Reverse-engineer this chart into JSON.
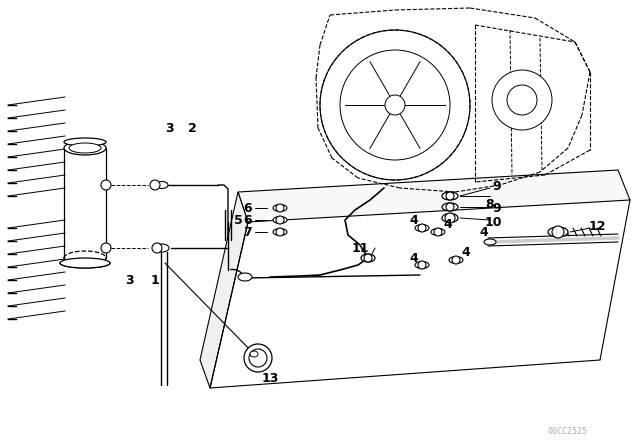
{
  "background_color": "#ffffff",
  "line_color": "#000000",
  "watermark": "00CC2525"
}
